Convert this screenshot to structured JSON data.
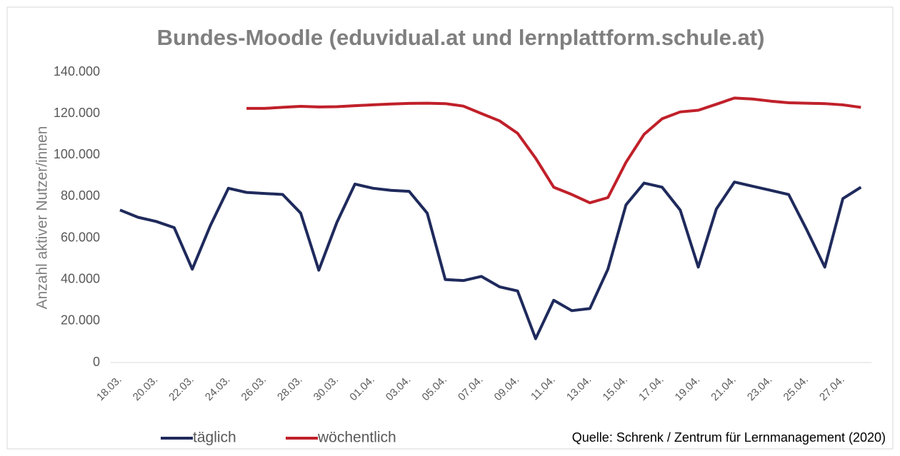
{
  "chart_data": {
    "type": "line",
    "title": "Bundes-Moodle (eduvidual.at und lernplattform.schule.at)",
    "y_label": "Anzahl aktiver Nutzer/innen",
    "source": "Quelle: Schrenk / Zentrum für Lernmanagement (2020)",
    "categories": [
      "18.03.",
      null,
      "20.03.",
      null,
      "22.03.",
      null,
      "24.03.",
      null,
      "26.03.",
      null,
      "28.03.",
      null,
      "30.03.",
      null,
      "01.04.",
      null,
      "03.04.",
      null,
      "05.04.",
      null,
      "07.04.",
      null,
      "09.04.",
      null,
      "11.04.",
      null,
      "13.04.",
      null,
      "15.04.",
      null,
      "17.04.",
      null,
      "19.04.",
      null,
      "21.04.",
      null,
      "23.04.",
      null,
      "25.04.",
      null,
      "27.04.",
      null
    ],
    "series": [
      {
        "name": "täglich",
        "color": "#1f2a5c",
        "values": [
          73500,
          70000,
          68000,
          65000,
          45000,
          66000,
          84000,
          82000,
          81500,
          81000,
          72000,
          44500,
          67500,
          86000,
          84000,
          83000,
          82500,
          72000,
          40000,
          39500,
          41500,
          36500,
          34500,
          11500,
          30000,
          25000,
          26000,
          45000,
          76000,
          86500,
          84500,
          73500,
          46000,
          74000,
          87000,
          85000,
          83000,
          81000,
          64000,
          46000,
          79000,
          84500
        ]
      },
      {
        "name": "wöchentlich",
        "color": "#c0202a",
        "values": [
          null,
          null,
          null,
          null,
          null,
          null,
          null,
          122500,
          122500,
          123000,
          123500,
          123200,
          123300,
          123800,
          124200,
          124600,
          124900,
          125000,
          124800,
          123600,
          120000,
          116500,
          110500,
          98500,
          84500,
          81000,
          77000,
          79500,
          96500,
          110000,
          117500,
          120800,
          121600,
          124500,
          127500,
          127000,
          126000,
          125200,
          125000,
          124800,
          124200,
          123000
        ]
      }
    ],
    "ylim": [
      0,
      140000
    ],
    "yticks": [
      0,
      {
        "value": 20000,
        "label": "20.000"
      },
      {
        "value": 40000,
        "label": "40.000"
      },
      {
        "value": 60000,
        "label": "60.000"
      },
      {
        "value": 80000,
        "label": "80.000"
      },
      {
        "value": 100000,
        "label": "100.000"
      },
      {
        "value": 120000,
        "label": "120.000"
      },
      {
        "value": 140000,
        "label": "140.000"
      }
    ],
    "grid": false,
    "legend": "bottom"
  }
}
